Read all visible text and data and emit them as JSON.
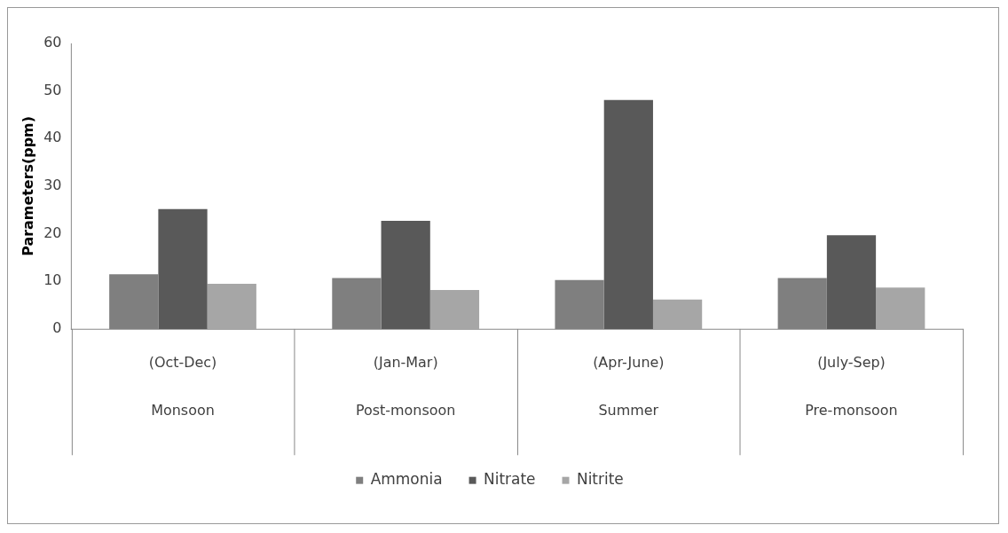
{
  "chart_data": {
    "type": "bar",
    "ylabel": "Parameters(ppm)",
    "categories": [
      "(Oct-Dec)\nMonsoon",
      "(Jan-Mar)\nPost-monsoon",
      "(Apr-June)\nSummer",
      "(July-Sep)\nPre-monsoon"
    ],
    "series": [
      {
        "name": "Ammonia",
        "color": "#7f7f7f",
        "values": [
          11.5,
          10.7,
          10.3,
          10.7
        ]
      },
      {
        "name": "Nitrate",
        "color": "#595959",
        "values": [
          25.2,
          22.7,
          48.1,
          19.7
        ]
      },
      {
        "name": "Nitrite",
        "color": "#a6a6a6",
        "values": [
          9.5,
          8.2,
          6.2,
          8.7
        ]
      }
    ],
    "ylim": [
      0,
      60
    ],
    "yticks": [
      0,
      10,
      20,
      30,
      40,
      50,
      60
    ],
    "grid": false,
    "legend": "bottom"
  }
}
